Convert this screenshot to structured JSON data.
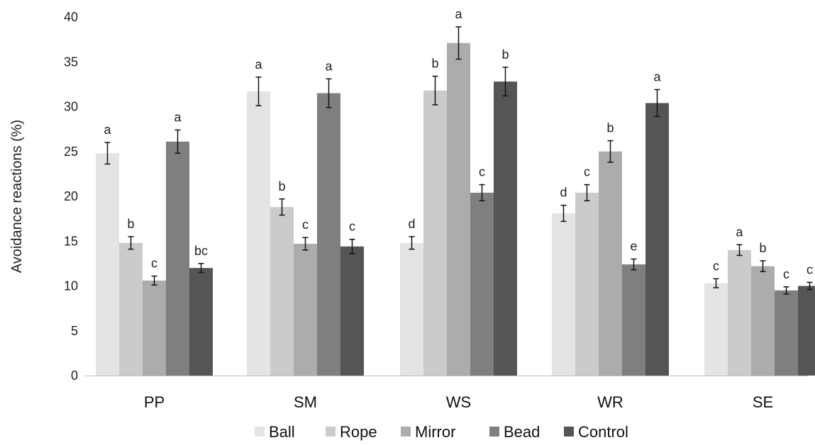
{
  "chart_data": {
    "type": "bar",
    "ylabel": "Avoidance reactions (%)",
    "xlabel": "",
    "ylim": [
      0,
      40
    ],
    "yticks": [
      0,
      5,
      10,
      15,
      20,
      25,
      30,
      35,
      40
    ],
    "grid": false,
    "legend_position": "bottom",
    "categories": [
      "PP",
      "SM",
      "WS",
      "WR",
      "SE"
    ],
    "series": [
      {
        "name": "Ball",
        "color": "#e4e4e4",
        "values": [
          24.8,
          31.7,
          14.8,
          18.1,
          10.3
        ],
        "errors": [
          1.2,
          1.6,
          0.7,
          0.9,
          0.5
        ],
        "labels": [
          "a",
          "a",
          "d",
          "d",
          "c"
        ]
      },
      {
        "name": "Rope",
        "color": "#cbcbcb",
        "values": [
          14.8,
          18.8,
          31.8,
          20.4,
          14.0
        ],
        "errors": [
          0.7,
          0.9,
          1.6,
          0.9,
          0.6
        ],
        "labels": [
          "b",
          "b",
          "b",
          "c",
          "a"
        ]
      },
      {
        "name": "Mirror",
        "color": "#acacac",
        "values": [
          10.6,
          14.7,
          37.1,
          25.0,
          12.2
        ],
        "errors": [
          0.5,
          0.7,
          1.8,
          1.2,
          0.6
        ],
        "labels": [
          "c",
          "c",
          "a",
          "b",
          "b"
        ]
      },
      {
        "name": "Bead",
        "color": "#7f7f7f",
        "values": [
          26.1,
          31.5,
          20.4,
          12.4,
          9.5
        ],
        "errors": [
          1.3,
          1.6,
          0.9,
          0.6,
          0.4
        ],
        "labels": [
          "a",
          "a",
          "c",
          "e",
          "c"
        ]
      },
      {
        "name": "Control",
        "color": "#555555",
        "values": [
          12.0,
          14.4,
          32.8,
          30.4,
          10.0
        ],
        "errors": [
          0.5,
          0.8,
          1.6,
          1.5,
          0.4
        ],
        "labels": [
          "bc",
          "c",
          "b",
          "a",
          "c"
        ]
      }
    ]
  }
}
